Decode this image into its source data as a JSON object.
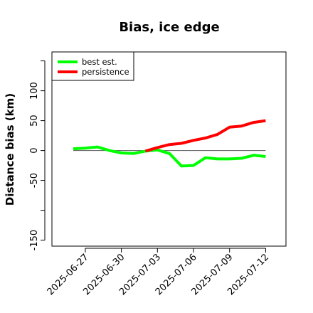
{
  "chart_data": {
    "type": "line",
    "title": "Bias, ice edge",
    "xlabel": "",
    "ylabel": "Distance bias (km)",
    "x": [
      "2025-06-26",
      "2025-06-27",
      "2025-06-28",
      "2025-06-29",
      "2025-06-30",
      "2025-07-01",
      "2025-07-02",
      "2025-07-03",
      "2025-07-04",
      "2025-07-05",
      "2025-07-06",
      "2025-07-07",
      "2025-07-08",
      "2025-07-09",
      "2025-07-10",
      "2025-07-11",
      "2025-07-12"
    ],
    "x_tick_labels": [
      "2025-06-27",
      "2025-06-30",
      "2025-07-03",
      "2025-07-06",
      "2025-07-09",
      "2025-07-12"
    ],
    "y_tick_labels": [
      "-150",
      "-50",
      "0",
      "50",
      "100"
    ],
    "ylim": [
      -160,
      165
    ],
    "grid": false,
    "legend_position": "top-left",
    "reference_line": 0,
    "series": [
      {
        "name": "best est.",
        "color": "#00ff00",
        "values": [
          3,
          4,
          6,
          0,
          -4,
          -5,
          -1,
          1,
          -5,
          -26,
          -25,
          -12,
          -14,
          -14,
          -13,
          -8,
          -10
        ]
      },
      {
        "name": "persistence",
        "color": "#ff0000",
        "values": [
          null,
          null,
          null,
          null,
          null,
          null,
          -1,
          5,
          10,
          12,
          17,
          21,
          27,
          39,
          41,
          47,
          50
        ]
      }
    ]
  }
}
